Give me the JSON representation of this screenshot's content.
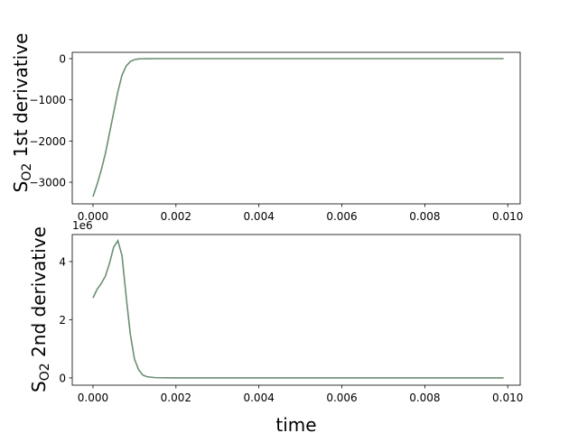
{
  "chart_data": [
    {
      "type": "line",
      "ylabel_parts": [
        "S",
        "O2",
        " 1st derivative"
      ],
      "x": [
        0,
        0.0001,
        0.0002,
        0.0003,
        0.0004,
        0.0005,
        0.0006,
        0.0007,
        0.0008,
        0.0009,
        0.001,
        0.0011,
        0.0012,
        0.0013,
        0.0015,
        0.002,
        0.003,
        0.004,
        0.005,
        0.006,
        0.007,
        0.008,
        0.009,
        0.0099
      ],
      "values": [
        -3350,
        -3050,
        -2700,
        -2300,
        -1800,
        -1300,
        -800,
        -400,
        -180,
        -70,
        -25,
        -8,
        -3,
        -1,
        0,
        0,
        0,
        0,
        0,
        0,
        0,
        0,
        0,
        0
      ],
      "color": "#6b8f73",
      "xlim": [
        -0.0005,
        0.0103
      ],
      "ylim": [
        -3525,
        153
      ],
      "xticks": [
        {
          "value": 0,
          "label": "0.000"
        },
        {
          "value": 0.002,
          "label": "0.002"
        },
        {
          "value": 0.004,
          "label": "0.004"
        },
        {
          "value": 0.006,
          "label": "0.006"
        },
        {
          "value": 0.008,
          "label": "0.008"
        },
        {
          "value": 0.01,
          "label": "0.010"
        }
      ],
      "yticks": [
        {
          "value": -3000,
          "label": "−3000"
        },
        {
          "value": -2000,
          "label": "−2000"
        },
        {
          "value": -1000,
          "label": "−1000"
        },
        0
      ]
    },
    {
      "type": "line",
      "ylabel_parts": [
        "S",
        "O2",
        " 2nd derivative"
      ],
      "xlabel": "time",
      "offset_text": "1e6",
      "x": [
        0,
        0.0001,
        0.0002,
        0.0003,
        0.0004,
        0.0005,
        0.0006,
        0.0007,
        0.0008,
        0.0009,
        0.001,
        0.0011,
        0.0012,
        0.0013,
        0.0015,
        0.002,
        0.003,
        0.004,
        0.005,
        0.006,
        0.007,
        0.008,
        0.009,
        0.0099
      ],
      "values": [
        2.75,
        3.05,
        3.25,
        3.5,
        3.95,
        4.5,
        4.72,
        4.2,
        2.8,
        1.5,
        0.65,
        0.28,
        0.1,
        0.04,
        0.01,
        0,
        0,
        0,
        0,
        0,
        0,
        0,
        0,
        0
      ],
      "color": "#6b8f73",
      "xlim": [
        -0.0005,
        0.0103
      ],
      "ylim": [
        -0.25,
        4.93
      ],
      "xticks": [
        {
          "value": 0,
          "label": "0.000"
        },
        {
          "value": 0.002,
          "label": "0.002"
        },
        {
          "value": 0.004,
          "label": "0.004"
        },
        {
          "value": 0.006,
          "label": "0.006"
        },
        {
          "value": 0.008,
          "label": "0.008"
        },
        {
          "value": 0.01,
          "label": "0.010"
        }
      ],
      "yticks": [
        0,
        2,
        4
      ]
    }
  ]
}
